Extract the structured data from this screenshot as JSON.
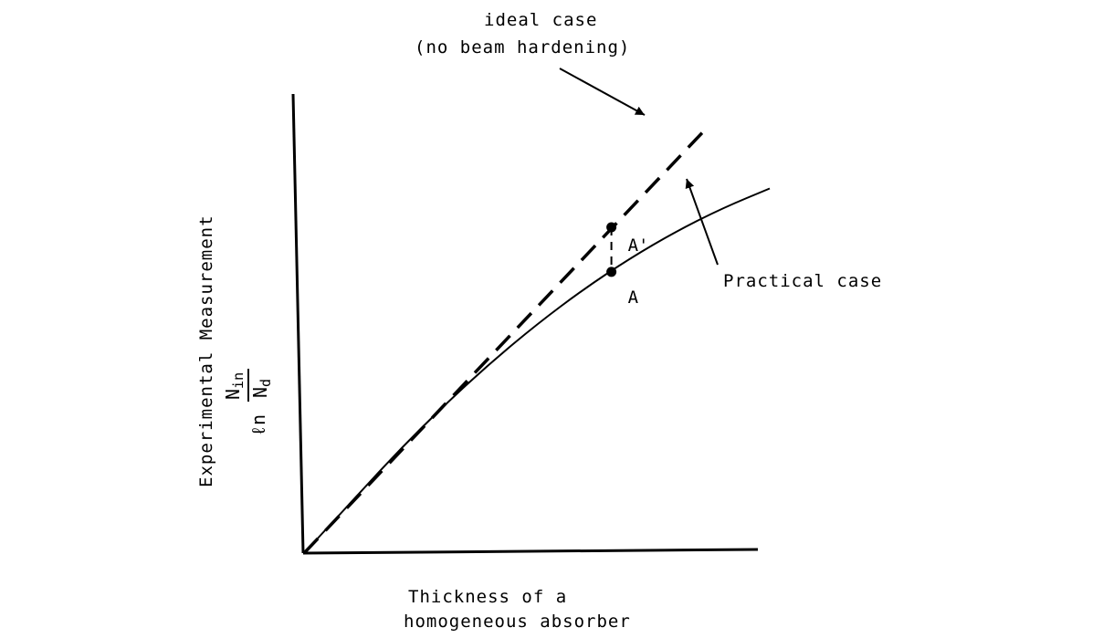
{
  "chart_data": {
    "type": "line",
    "xlabel_line1": "Thickness of a",
    "xlabel_line2": "homogeneous absorber",
    "ylabel_text": "Experimental Measurement",
    "ylabel_ln": "ℓn",
    "ylabel_num_base": "N",
    "ylabel_num_sub": "in",
    "ylabel_den_base": "N",
    "ylabel_den_sub": "d",
    "series": [
      {
        "name": "ideal case (no beam hardening)",
        "style": "dashed",
        "x": [
          0,
          8.6
        ],
        "y": [
          0,
          10.9
        ]
      },
      {
        "name": "Practical case",
        "style": "solid",
        "x": [
          0,
          1,
          2,
          3,
          4,
          5,
          6,
          7,
          8,
          9,
          10
        ],
        "y": [
          0,
          1.3,
          2.6,
          3.8,
          4.9,
          5.9,
          6.8,
          7.6,
          8.3,
          8.9,
          9.4
        ]
      }
    ],
    "points": [
      {
        "label": "A'",
        "x": 6.6,
        "y": 8.4
      },
      {
        "label": "A",
        "x": 6.6,
        "y": 7.25
      }
    ],
    "annotations": [
      {
        "line1": "ideal case",
        "line2": "(no beam hardening)",
        "target": "ideal-line"
      },
      {
        "line1": "Practical case",
        "target": "practical-curve"
      }
    ],
    "xlim": [
      0,
      10
    ],
    "ylim": [
      0,
      10
    ],
    "grid": false,
    "legend": "none"
  }
}
